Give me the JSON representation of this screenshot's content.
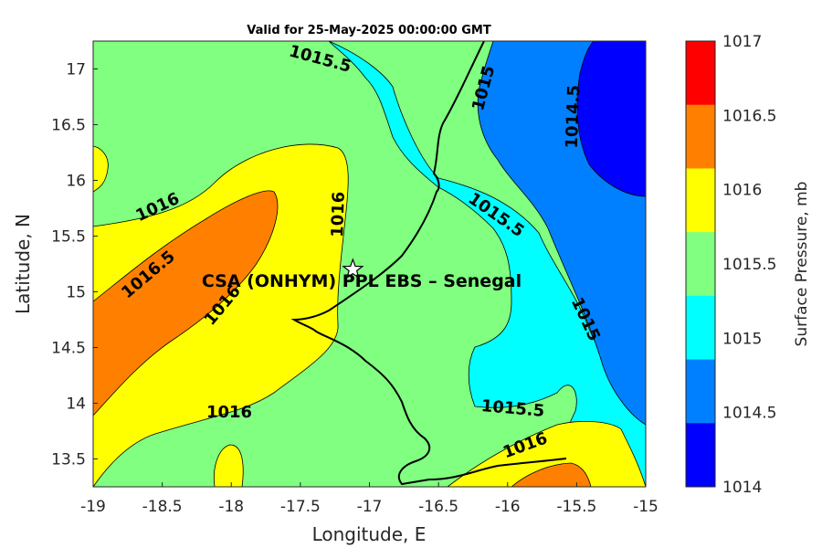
{
  "title": "Valid for 25-May-2025 00:00:00 GMT",
  "xlabel": "Longitude, E",
  "ylabel": "Latitude, N",
  "x_ticks": [
    "-19",
    "-18.5",
    "-18",
    "-17.5",
    "-17",
    "-16.5",
    "-16",
    "-15.5",
    "-15"
  ],
  "y_ticks": [
    "17",
    "16.5",
    "16",
    "15.5",
    "15",
    "14.5",
    "14",
    "13.5"
  ],
  "xlim": [
    -19,
    -15
  ],
  "ylim": [
    13.25,
    17.25
  ],
  "colorbar": {
    "label": "Surface Pressure, mb",
    "ticks": [
      "1017",
      "1016.5",
      "1016",
      "1015.5",
      "1015",
      "1014.5",
      "1014"
    ],
    "colors": [
      "#ff0000",
      "#ff8000",
      "#ffff00",
      "#80ff80",
      "#00ffff",
      "#0080ff",
      "#0000ff"
    ]
  },
  "contour_labels": [
    "1015.5",
    "1015",
    "1014.5",
    "1016",
    "1015.5",
    "1016",
    "1016.5",
    "1016",
    "1015",
    "1016",
    "1015.5",
    "1016"
  ],
  "site": {
    "name": "CSA (ONHYM) PPL EBS  – Senegal",
    "lon": -17.12,
    "lat": 15.2
  }
}
